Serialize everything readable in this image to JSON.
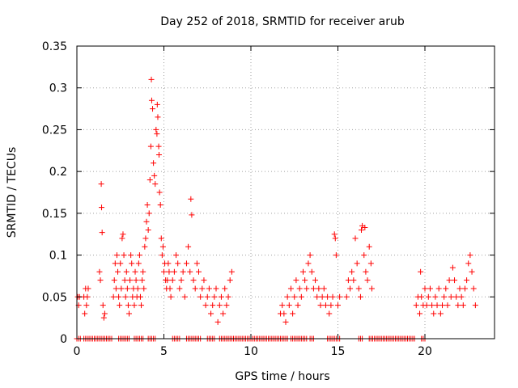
{
  "chart_data": {
    "type": "scatter",
    "title": "Day 252 of 2018, SRMTID for receiver arub",
    "xlabel": "GPS time / hours",
    "ylabel": "SRMTID / TECUs",
    "xlim": [
      0,
      24
    ],
    "ylim": [
      0,
      0.35
    ],
    "grid": true,
    "marker": "+",
    "marker_color": "#ff0000",
    "x_ticks": [
      0,
      5,
      10,
      15,
      20
    ],
    "x_tick_labels": [
      "0",
      "5",
      "10",
      "15",
      "20"
    ],
    "y_ticks": [
      0,
      0.05,
      0.1,
      0.15,
      0.2,
      0.25,
      0.3,
      0.35
    ],
    "y_tick_labels": [
      "0",
      "0.05",
      "0.1",
      "0.15",
      "0.2",
      "0.25",
      "0.3",
      "0.35"
    ],
    "series": [
      {
        "name": "SRMTID",
        "points": [
          [
            0.05,
            0.05
          ],
          [
            0.1,
            0.04
          ],
          [
            0.15,
            0.05
          ],
          [
            0.4,
            0.05
          ],
          [
            0.45,
            0.03
          ],
          [
            0.5,
            0.06
          ],
          [
            0.55,
            0.04
          ],
          [
            0.6,
            0.05
          ],
          [
            0.65,
            0.06
          ],
          [
            1.3,
            0.08
          ],
          [
            1.35,
            0.07
          ],
          [
            1.4,
            0.185
          ],
          [
            1.42,
            0.157
          ],
          [
            1.45,
            0.127
          ],
          [
            1.5,
            0.04
          ],
          [
            1.55,
            0.025
          ],
          [
            1.6,
            0.03
          ],
          [
            2.1,
            0.05
          ],
          [
            2.15,
            0.07
          ],
          [
            2.2,
            0.09
          ],
          [
            2.25,
            0.06
          ],
          [
            2.3,
            0.1
          ],
          [
            2.35,
            0.08
          ],
          [
            2.4,
            0.05
          ],
          [
            2.45,
            0.04
          ],
          [
            2.5,
            0.09
          ],
          [
            2.55,
            0.06
          ],
          [
            2.6,
            0.12
          ],
          [
            2.65,
            0.125
          ],
          [
            2.7,
            0.1
          ],
          [
            2.75,
            0.07
          ],
          [
            2.8,
            0.05
          ],
          [
            2.85,
            0.08
          ],
          [
            2.9,
            0.06
          ],
          [
            2.95,
            0.04
          ],
          [
            3.0,
            0.03
          ],
          [
            3.05,
            0.07
          ],
          [
            3.1,
            0.1
          ],
          [
            3.15,
            0.09
          ],
          [
            3.2,
            0.05
          ],
          [
            3.25,
            0.06
          ],
          [
            3.3,
            0.04
          ],
          [
            3.35,
            0.08
          ],
          [
            3.4,
            0.07
          ],
          [
            3.45,
            0.05
          ],
          [
            3.5,
            0.06
          ],
          [
            3.55,
            0.09
          ],
          [
            3.6,
            0.1
          ],
          [
            3.65,
            0.05
          ],
          [
            3.7,
            0.04
          ],
          [
            3.75,
            0.07
          ],
          [
            3.8,
            0.08
          ],
          [
            3.85,
            0.06
          ],
          [
            3.9,
            0.11
          ],
          [
            3.95,
            0.12
          ],
          [
            4.0,
            0.14
          ],
          [
            4.05,
            0.16
          ],
          [
            4.1,
            0.13
          ],
          [
            4.15,
            0.15
          ],
          [
            4.2,
            0.19
          ],
          [
            4.25,
            0.23
          ],
          [
            4.28,
            0.31
          ],
          [
            4.3,
            0.285
          ],
          [
            4.35,
            0.275
          ],
          [
            4.4,
            0.21
          ],
          [
            4.45,
            0.195
          ],
          [
            4.5,
            0.185
          ],
          [
            4.55,
            0.25
          ],
          [
            4.6,
            0.245
          ],
          [
            4.62,
            0.28
          ],
          [
            4.65,
            0.265
          ],
          [
            4.7,
            0.23
          ],
          [
            4.72,
            0.22
          ],
          [
            4.75,
            0.175
          ],
          [
            4.8,
            0.16
          ],
          [
            4.85,
            0.12
          ],
          [
            4.9,
            0.1
          ],
          [
            4.95,
            0.11
          ],
          [
            5.0,
            0.08
          ],
          [
            5.05,
            0.09
          ],
          [
            5.1,
            0.07
          ],
          [
            5.15,
            0.06
          ],
          [
            5.2,
            0.07
          ],
          [
            5.25,
            0.09
          ],
          [
            5.3,
            0.08
          ],
          [
            5.35,
            0.06
          ],
          [
            5.4,
            0.05
          ],
          [
            5.5,
            0.07
          ],
          [
            5.6,
            0.08
          ],
          [
            5.7,
            0.1
          ],
          [
            5.8,
            0.09
          ],
          [
            5.9,
            0.06
          ],
          [
            6.0,
            0.07
          ],
          [
            6.1,
            0.08
          ],
          [
            6.2,
            0.05
          ],
          [
            6.3,
            0.09
          ],
          [
            6.4,
            0.11
          ],
          [
            6.5,
            0.08
          ],
          [
            6.55,
            0.167
          ],
          [
            6.6,
            0.148
          ],
          [
            6.7,
            0.07
          ],
          [
            6.8,
            0.06
          ],
          [
            6.9,
            0.09
          ],
          [
            7.0,
            0.08
          ],
          [
            7.1,
            0.05
          ],
          [
            7.2,
            0.06
          ],
          [
            7.3,
            0.07
          ],
          [
            7.4,
            0.04
          ],
          [
            7.5,
            0.05
          ],
          [
            7.6,
            0.06
          ],
          [
            7.7,
            0.03
          ],
          [
            7.8,
            0.04
          ],
          [
            7.9,
            0.05
          ],
          [
            8.0,
            0.06
          ],
          [
            8.1,
            0.02
          ],
          [
            8.2,
            0.04
          ],
          [
            8.3,
            0.05
          ],
          [
            8.4,
            0.03
          ],
          [
            8.5,
            0.06
          ],
          [
            8.6,
            0.04
          ],
          [
            8.7,
            0.05
          ],
          [
            8.8,
            0.07
          ],
          [
            8.9,
            0.08
          ],
          [
            11.7,
            0.03
          ],
          [
            11.8,
            0.04
          ],
          [
            11.9,
            0.03
          ],
          [
            12.0,
            0.02
          ],
          [
            12.1,
            0.05
          ],
          [
            12.2,
            0.04
          ],
          [
            12.3,
            0.06
          ],
          [
            12.4,
            0.03
          ],
          [
            12.5,
            0.05
          ],
          [
            12.6,
            0.07
          ],
          [
            12.7,
            0.04
          ],
          [
            12.8,
            0.06
          ],
          [
            12.9,
            0.05
          ],
          [
            13.0,
            0.08
          ],
          [
            13.1,
            0.07
          ],
          [
            13.2,
            0.06
          ],
          [
            13.3,
            0.09
          ],
          [
            13.4,
            0.1
          ],
          [
            13.5,
            0.08
          ],
          [
            13.6,
            0.06
          ],
          [
            13.7,
            0.07
          ],
          [
            13.8,
            0.05
          ],
          [
            13.9,
            0.06
          ],
          [
            14.0,
            0.04
          ],
          [
            14.1,
            0.05
          ],
          [
            14.2,
            0.06
          ],
          [
            14.3,
            0.04
          ],
          [
            14.4,
            0.05
          ],
          [
            14.5,
            0.03
          ],
          [
            14.6,
            0.04
          ],
          [
            14.7,
            0.05
          ],
          [
            14.8,
            0.125
          ],
          [
            14.85,
            0.12
          ],
          [
            14.9,
            0.1
          ],
          [
            15.0,
            0.04
          ],
          [
            15.1,
            0.05
          ],
          [
            15.5,
            0.05
          ],
          [
            15.6,
            0.07
          ],
          [
            15.7,
            0.06
          ],
          [
            15.8,
            0.08
          ],
          [
            15.9,
            0.07
          ],
          [
            16.0,
            0.12
          ],
          [
            16.1,
            0.09
          ],
          [
            16.2,
            0.06
          ],
          [
            16.3,
            0.05
          ],
          [
            16.35,
            0.13
          ],
          [
            16.4,
            0.135
          ],
          [
            16.5,
            0.1
          ],
          [
            16.55,
            0.133
          ],
          [
            16.6,
            0.08
          ],
          [
            16.7,
            0.07
          ],
          [
            16.8,
            0.11
          ],
          [
            16.9,
            0.09
          ],
          [
            16.95,
            0.06
          ],
          [
            19.5,
            0.04
          ],
          [
            19.6,
            0.05
          ],
          [
            19.7,
            0.03
          ],
          [
            19.75,
            0.08
          ],
          [
            19.8,
            0.05
          ],
          [
            19.9,
            0.04
          ],
          [
            20.0,
            0.06
          ],
          [
            20.1,
            0.04
          ],
          [
            20.2,
            0.05
          ],
          [
            20.3,
            0.06
          ],
          [
            20.4,
            0.04
          ],
          [
            20.5,
            0.03
          ],
          [
            20.6,
            0.05
          ],
          [
            20.7,
            0.04
          ],
          [
            20.8,
            0.06
          ],
          [
            20.9,
            0.03
          ],
          [
            21.0,
            0.04
          ],
          [
            21.1,
            0.05
          ],
          [
            21.2,
            0.06
          ],
          [
            21.3,
            0.04
          ],
          [
            21.4,
            0.07
          ],
          [
            21.5,
            0.05
          ],
          [
            21.6,
            0.085
          ],
          [
            21.7,
            0.07
          ],
          [
            21.8,
            0.05
          ],
          [
            21.9,
            0.04
          ],
          [
            22.0,
            0.06
          ],
          [
            22.1,
            0.05
          ],
          [
            22.2,
            0.04
          ],
          [
            22.3,
            0.06
          ],
          [
            22.4,
            0.07
          ],
          [
            22.5,
            0.09
          ],
          [
            22.6,
            0.1
          ],
          [
            22.7,
            0.08
          ],
          [
            22.8,
            0.06
          ],
          [
            22.9,
            0.04
          ]
        ],
        "zero_runs": [
          [
            0.0,
            0.2
          ],
          [
            0.4,
            2.0
          ],
          [
            2.4,
            3.0
          ],
          [
            3.3,
            3.8
          ],
          [
            4.1,
            4.5
          ],
          [
            5.5,
            5.9
          ],
          [
            6.3,
            7.1
          ],
          [
            7.5,
            7.9
          ],
          [
            8.2,
            12.1
          ],
          [
            12.3,
            13.2
          ],
          [
            13.4,
            13.6
          ],
          [
            14.4,
            15.1
          ],
          [
            16.2,
            16.4
          ],
          [
            16.8,
            19.4
          ],
          [
            19.8,
            20.0
          ]
        ]
      }
    ]
  }
}
